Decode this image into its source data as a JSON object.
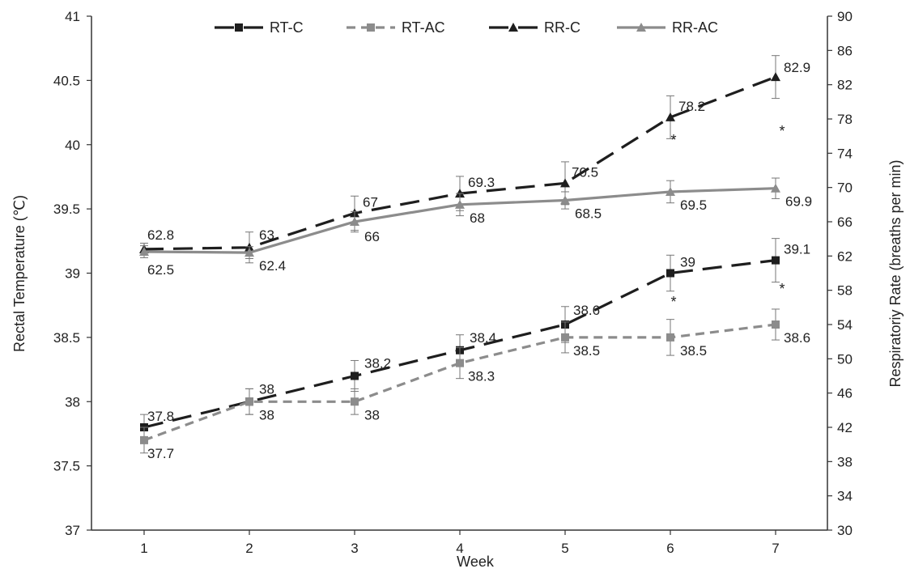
{
  "chart_data": {
    "type": "line",
    "xlabel": "Week",
    "ylabel_left": "Rectal Temperature  (℃)",
    "ylabel_right": "Respiratoriy  Rate (breaths per min)",
    "x": [
      1,
      2,
      3,
      4,
      5,
      6,
      7
    ],
    "y_left_lim": [
      37,
      41
    ],
    "y_left_ticks": [
      37,
      37.5,
      38,
      38.5,
      39,
      39.5,
      40,
      40.5,
      41
    ],
    "y_right_lim": [
      30,
      90
    ],
    "y_right_ticks": [
      30,
      34,
      38,
      42,
      46,
      50,
      54,
      58,
      62,
      66,
      70,
      74,
      78,
      82,
      86,
      90
    ],
    "legend_position": "top",
    "series": [
      {
        "name": "RT-C",
        "axis": "left",
        "color": "#1e1e1e",
        "dash": "long",
        "marker": "square",
        "values": [
          37.8,
          38,
          38.2,
          38.4,
          38.6,
          39,
          39.1
        ],
        "labels": [
          "37.8",
          "38",
          "38.2",
          "38.4",
          "38.6",
          "39",
          "39.1"
        ],
        "error": [
          0.1,
          0.1,
          0.12,
          0.12,
          0.14,
          0.14,
          0.17
        ]
      },
      {
        "name": "RT-AC",
        "axis": "left",
        "color": "#8c8c8c",
        "dash": "short",
        "marker": "square",
        "values": [
          37.7,
          38,
          38,
          38.3,
          38.5,
          38.5,
          38.6
        ],
        "labels": [
          "37.7",
          "38",
          "38",
          "38.3",
          "38.5",
          "38.5",
          "38.6"
        ],
        "error": [
          0.1,
          0.1,
          0.1,
          0.12,
          0.12,
          0.14,
          0.12
        ]
      },
      {
        "name": "RR-C",
        "axis": "right",
        "color": "#1e1e1e",
        "dash": "long",
        "marker": "triangle",
        "values": [
          62.8,
          63,
          67,
          69.3,
          70.5,
          78.2,
          82.9
        ],
        "labels": [
          "62.8",
          "63",
          "67",
          "69.3",
          "70.5",
          "78.2",
          "82.9"
        ],
        "error": [
          0.7,
          1.8,
          2.0,
          2.0,
          2.5,
          2.5,
          2.5
        ]
      },
      {
        "name": "RR-AC",
        "axis": "right",
        "color": "#8c8c8c",
        "dash": "solid",
        "marker": "triangle",
        "values": [
          62.5,
          62.4,
          66,
          68,
          68.5,
          69.5,
          69.9
        ],
        "labels": [
          "62.5",
          "62.4",
          "66",
          "68",
          "68.5",
          "69.5",
          "69.9"
        ],
        "error": [
          0.7,
          0.7,
          1.2,
          1.3,
          1.0,
          1.3,
          1.2
        ]
      }
    ],
    "significance": [
      {
        "x": 6,
        "text": "*",
        "axis": "right",
        "level": 75
      },
      {
        "x": 7,
        "text": "*",
        "axis": "right",
        "level": 76
      },
      {
        "x": 6,
        "text": "*",
        "axis": "left",
        "level": 38.74
      },
      {
        "x": 7,
        "text": "*",
        "axis": "left",
        "level": 38.84
      }
    ]
  }
}
